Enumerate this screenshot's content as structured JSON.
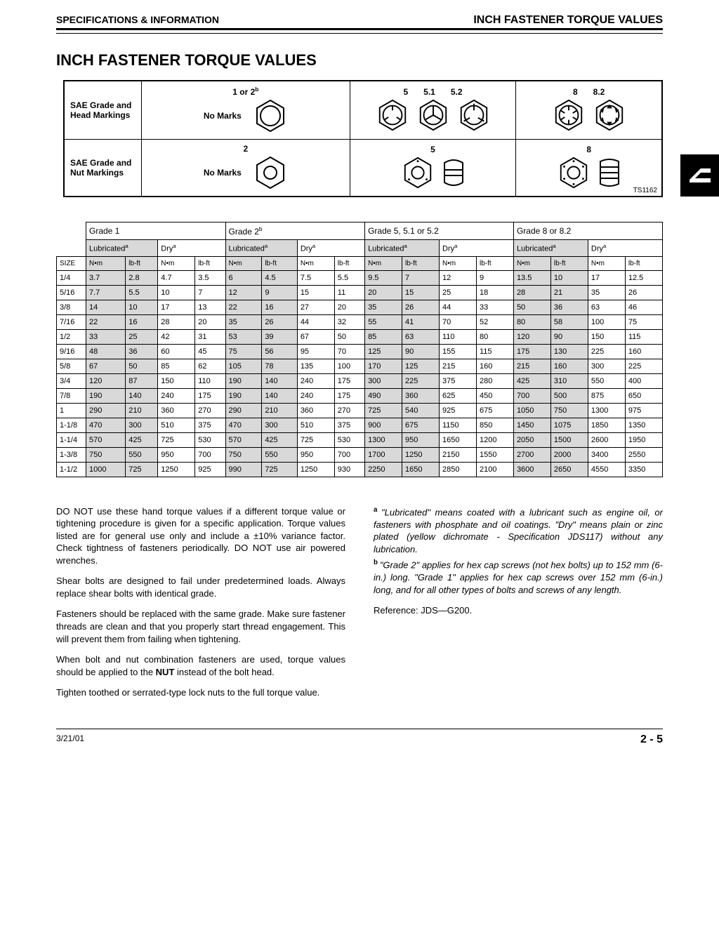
{
  "header": {
    "left": "SPECIFICATIONS & INFORMATION",
    "right": "INCH FASTENER TORQUE VALUES"
  },
  "title": "INCH FASTENER TORQUE VALUES",
  "markings": {
    "headRowLabel": "SAE Grade and Head Markings",
    "nutRowLabel": "SAE Grade and Nut Markings",
    "noMarks": "No Marks",
    "headGrades": {
      "c1": "1 or 2",
      "c1sup": "b",
      "c2a": "5",
      "c2b": "5.1",
      "c2c": "5.2",
      "c3a": "8",
      "c3b": "8.2"
    },
    "nutGrades": {
      "c1": "2",
      "c2": "5",
      "c3": "8"
    },
    "ref": "TS1162"
  },
  "table": {
    "gradeHeaders": [
      "Grade 1",
      "Grade 2",
      "Grade 5, 5.1 or 5.2",
      "Grade 8 or 8.2"
    ],
    "gradeSup": [
      "",
      "b",
      "",
      ""
    ],
    "condHeaders": [
      "Lubricated",
      "Dry"
    ],
    "condSup": "a",
    "unitHeaders": [
      "N•m",
      "lb-ft"
    ],
    "sizeLabel": "SIZE",
    "rows": [
      {
        "size": "1/4",
        "v": [
          3.7,
          2.8,
          4.7,
          3.5,
          6,
          4.5,
          7.5,
          5.5,
          9.5,
          7,
          12,
          9,
          13.5,
          10,
          17,
          12.5
        ]
      },
      {
        "size": "5/16",
        "v": [
          7.7,
          5.5,
          10,
          7,
          12,
          9,
          15,
          11,
          20,
          15,
          25,
          18,
          28,
          21,
          35,
          26
        ]
      },
      {
        "size": "3/8",
        "v": [
          14,
          10,
          17,
          13,
          22,
          16,
          27,
          20,
          35,
          26,
          44,
          33,
          50,
          36,
          63,
          46
        ]
      },
      {
        "size": "7/16",
        "v": [
          22,
          16,
          28,
          20,
          35,
          26,
          44,
          32,
          55,
          41,
          70,
          52,
          80,
          58,
          100,
          75
        ]
      },
      {
        "size": "1/2",
        "v": [
          33,
          25,
          42,
          31,
          53,
          39,
          67,
          50,
          85,
          63,
          110,
          80,
          120,
          90,
          150,
          115
        ]
      },
      {
        "size": "9/16",
        "v": [
          48,
          36,
          60,
          45,
          75,
          56,
          95,
          70,
          125,
          90,
          155,
          115,
          175,
          130,
          225,
          160
        ]
      },
      {
        "size": "5/8",
        "v": [
          67,
          50,
          85,
          62,
          105,
          78,
          135,
          100,
          170,
          125,
          215,
          160,
          215,
          160,
          300,
          225
        ]
      },
      {
        "size": "3/4",
        "v": [
          120,
          87,
          150,
          110,
          190,
          140,
          240,
          175,
          300,
          225,
          375,
          280,
          425,
          310,
          550,
          400
        ]
      },
      {
        "size": "7/8",
        "v": [
          190,
          140,
          240,
          175,
          190,
          140,
          240,
          175,
          490,
          360,
          625,
          450,
          700,
          500,
          875,
          650
        ]
      },
      {
        "size": "1",
        "v": [
          290,
          210,
          360,
          270,
          290,
          210,
          360,
          270,
          725,
          540,
          925,
          675,
          1050,
          750,
          1300,
          975
        ]
      },
      {
        "size": "1-1/8",
        "v": [
          470,
          300,
          510,
          375,
          470,
          300,
          510,
          375,
          900,
          675,
          1150,
          850,
          1450,
          1075,
          1850,
          1350
        ]
      },
      {
        "size": "1-1/4",
        "v": [
          570,
          425,
          725,
          530,
          570,
          425,
          725,
          530,
          1300,
          950,
          1650,
          1200,
          2050,
          1500,
          2600,
          1950
        ]
      },
      {
        "size": "1-3/8",
        "v": [
          750,
          550,
          950,
          700,
          750,
          550,
          950,
          700,
          1700,
          1250,
          2150,
          1550,
          2700,
          2000,
          3400,
          2550
        ]
      },
      {
        "size": "1-1/2",
        "v": [
          1000,
          725,
          1250,
          925,
          990,
          725,
          1250,
          930,
          2250,
          1650,
          2850,
          2100,
          3600,
          2650,
          4550,
          3350
        ]
      }
    ],
    "shadedCols": [
      0,
      1,
      4,
      5,
      8,
      9,
      12,
      13
    ]
  },
  "prose": {
    "p1": "DO NOT use these hand torque values if a different torque value or tightening procedure is given for a specific application. Torque values listed are for general use only and include a ±10% variance factor. Check tightness of fasteners periodically. DO NOT use air powered wrenches.",
    "p2": "Shear bolts are designed to fail under predetermined loads. Always replace shear bolts with identical grade.",
    "p3": "Fasteners should be replaced with the same grade. Make sure fastener threads are clean and that you properly start thread engagement. This will prevent them from failing when tightening.",
    "p4a": "When bolt and nut combination fasteners are used, torque values should be applied to the ",
    "p4b": "NUT",
    "p4c": " instead of the bolt head.",
    "p5": "Tighten toothed or serrated-type lock nuts to the full torque value.",
    "fa": "\"Lubricated\" means coated with a lubricant such as engine oil, or fasteners with phosphate and oil coatings. \"Dry\" means plain or zinc plated (yellow dichromate - Specification JDS117) without any lubrication.",
    "fb": "\"Grade 2\" applies for hex cap screws (not hex bolts) up to 152 mm (6-in.) long. \"Grade 1\" applies for hex cap screws over 152 mm (6-in.) long, and for all other types of bolts and screws of any length.",
    "ref": "Reference: JDS—G200."
  },
  "footer": {
    "date": "3/21/01",
    "page": "2 - 5"
  }
}
